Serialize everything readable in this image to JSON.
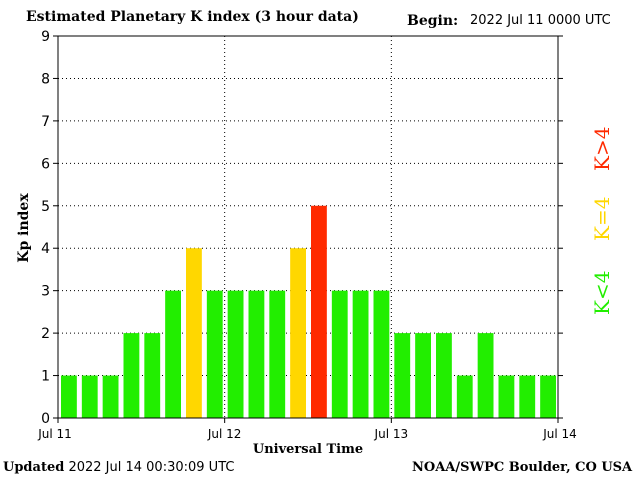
{
  "header": {
    "title": "Estimated Planetary K index (3 hour data)",
    "begin_label": "Begin:",
    "begin_value": "2022 Jul 11 0000 UTC"
  },
  "footer": {
    "updated_label": "Updated",
    "updated_value": "2022 Jul 14 00:30:09 UTC",
    "credit": "NOAA/SWPC Boulder, CO USA"
  },
  "legend": {
    "low": "K<4",
    "eq": "K=4",
    "high": "K>4"
  },
  "colors": {
    "low": "#22ee00",
    "eq": "#ffd700",
    "high": "#ff2a00",
    "grid": "#000000"
  },
  "chart_data": {
    "type": "bar",
    "title": "Estimated Planetary K index (3 hour data)",
    "xlabel": "Universal Time",
    "ylabel": "Kp index",
    "ylim": [
      0,
      9
    ],
    "yticks": [
      "0",
      "1",
      "2",
      "3",
      "4",
      "5",
      "6",
      "7",
      "8",
      "9"
    ],
    "xtick_labels": [
      "Jul 11",
      "Jul 12",
      "Jul 13",
      "Jul 14"
    ],
    "grid": true,
    "values": [
      1,
      1,
      1,
      2,
      2,
      3,
      4,
      3,
      3,
      3,
      3,
      4,
      5,
      3,
      3,
      3,
      2,
      2,
      2,
      1,
      2,
      1,
      1,
      1
    ]
  }
}
